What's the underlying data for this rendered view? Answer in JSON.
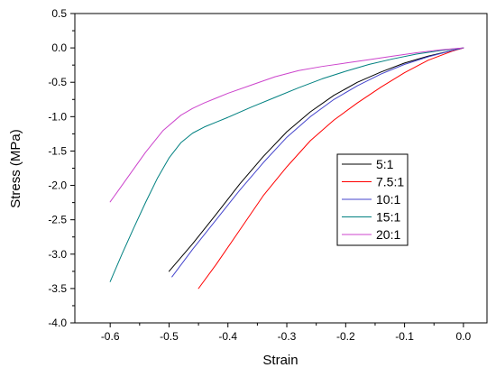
{
  "chart_data": {
    "type": "line",
    "title": "",
    "xlabel": "Strain",
    "ylabel": "Stress (MPa)",
    "xlim": [
      -0.66,
      0.04
    ],
    "ylim": [
      -4.0,
      0.5
    ],
    "xticks": [
      -0.6,
      -0.5,
      -0.4,
      -0.3,
      -0.2,
      -0.1,
      0.0
    ],
    "xtick_labels": [
      "-0.6",
      "-0.5",
      "-0.4",
      "-0.3",
      "-0.2",
      "-0.1",
      "0.0"
    ],
    "yticks": [
      0.5,
      0.0,
      -0.5,
      -1.0,
      -1.5,
      -2.0,
      -2.5,
      -3.0,
      -3.5,
      -4.0
    ],
    "ytick_labels": [
      "0.5",
      "0.0",
      "-0.5",
      "-1.0",
      "-1.5",
      "-2.0",
      "-2.5",
      "-3.0",
      "-3.5",
      "-4.0"
    ],
    "grid": false,
    "legend_position": "center-right",
    "series": [
      {
        "name": "5:1",
        "color": "#000000",
        "x": [
          -0.5,
          -0.46,
          -0.42,
          -0.38,
          -0.34,
          -0.3,
          -0.26,
          -0.22,
          -0.18,
          -0.14,
          -0.1,
          -0.06,
          -0.02,
          0.0
        ],
        "y": [
          -3.25,
          -2.85,
          -2.42,
          -1.98,
          -1.58,
          -1.22,
          -0.93,
          -0.69,
          -0.5,
          -0.35,
          -0.22,
          -0.12,
          -0.04,
          0.0
        ]
      },
      {
        "name": "7.5:1",
        "color": "#ff0000",
        "x": [
          -0.45,
          -0.42,
          -0.38,
          -0.34,
          -0.3,
          -0.26,
          -0.22,
          -0.18,
          -0.14,
          -0.1,
          -0.06,
          -0.02,
          0.0
        ],
        "y": [
          -3.5,
          -3.15,
          -2.65,
          -2.15,
          -1.73,
          -1.35,
          -1.05,
          -0.8,
          -0.57,
          -0.36,
          -0.18,
          -0.05,
          0.0
        ]
      },
      {
        "name": "10:1",
        "color": "#4444cc",
        "x": [
          -0.495,
          -0.46,
          -0.42,
          -0.38,
          -0.34,
          -0.3,
          -0.26,
          -0.22,
          -0.18,
          -0.14,
          -0.1,
          -0.06,
          -0.02,
          0.0
        ],
        "y": [
          -3.33,
          -2.93,
          -2.5,
          -2.07,
          -1.67,
          -1.3,
          -1.0,
          -0.75,
          -0.55,
          -0.38,
          -0.24,
          -0.13,
          -0.04,
          0.0
        ]
      },
      {
        "name": "15:1",
        "color": "#008080",
        "x": [
          -0.6,
          -0.58,
          -0.56,
          -0.54,
          -0.52,
          -0.5,
          -0.48,
          -0.46,
          -0.44,
          -0.42,
          -0.4,
          -0.36,
          -0.32,
          -0.28,
          -0.24,
          -0.2,
          -0.16,
          -0.12,
          -0.08,
          -0.04,
          0.0
        ],
        "y": [
          -3.4,
          -3.0,
          -2.62,
          -2.25,
          -1.9,
          -1.6,
          -1.38,
          -1.24,
          -1.15,
          -1.08,
          -1.01,
          -0.86,
          -0.72,
          -0.58,
          -0.45,
          -0.34,
          -0.24,
          -0.16,
          -0.09,
          -0.04,
          0.0
        ]
      },
      {
        "name": "20:1",
        "color": "#cc44cc",
        "x": [
          -0.6,
          -0.57,
          -0.54,
          -0.51,
          -0.48,
          -0.46,
          -0.44,
          -0.42,
          -0.4,
          -0.36,
          -0.32,
          -0.28,
          -0.24,
          -0.2,
          -0.16,
          -0.12,
          -0.08,
          -0.04,
          0.0
        ],
        "y": [
          -2.24,
          -1.88,
          -1.52,
          -1.2,
          -0.98,
          -0.88,
          -0.8,
          -0.73,
          -0.66,
          -0.54,
          -0.42,
          -0.33,
          -0.27,
          -0.22,
          -0.17,
          -0.12,
          -0.07,
          -0.03,
          0.0
        ]
      }
    ]
  }
}
